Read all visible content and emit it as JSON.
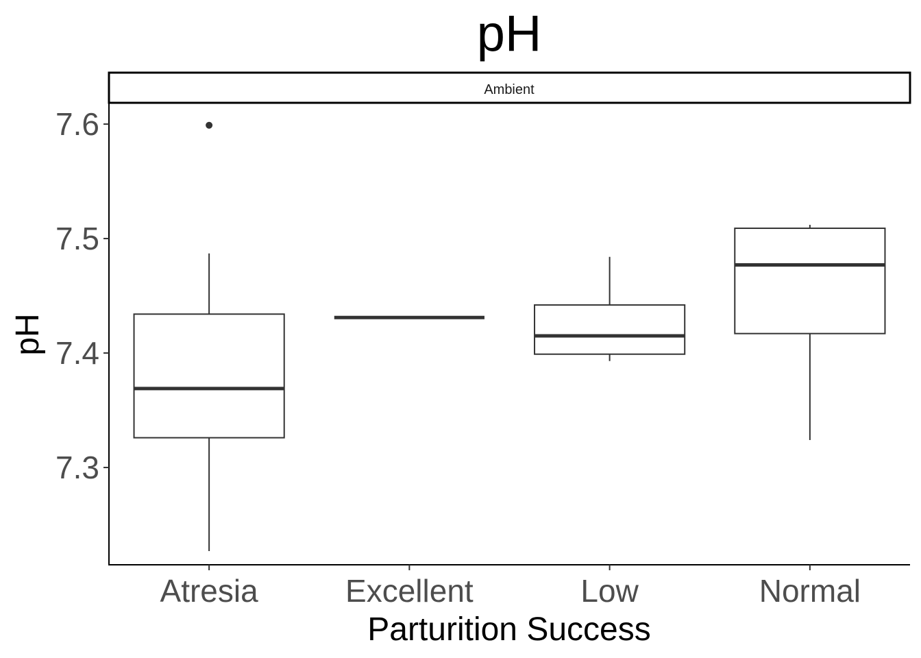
{
  "chart_data": {
    "type": "boxplot",
    "title": "pH",
    "facet_label": "Ambient",
    "xlabel": "Parturition Success",
    "ylabel": "pH",
    "ylim": [
      7.215,
      7.618
    ],
    "yticks": [
      7.3,
      7.4,
      7.5,
      7.6
    ],
    "ytick_labels": [
      "7.3",
      "7.4",
      "7.5",
      "7.6"
    ],
    "categories": [
      "Atresia",
      "Excellent",
      "Low",
      "Normal"
    ],
    "boxes": [
      {
        "category": "Atresia",
        "whisker_low": 7.227,
        "q1": 7.326,
        "median": 7.369,
        "q3": 7.434,
        "whisker_high": 7.487,
        "outliers": [
          7.599
        ]
      },
      {
        "category": "Excellent",
        "whisker_low": 7.431,
        "q1": 7.431,
        "median": 7.431,
        "q3": 7.431,
        "whisker_high": 7.431,
        "outliers": []
      },
      {
        "category": "Low",
        "whisker_low": 7.393,
        "q1": 7.399,
        "median": 7.415,
        "q3": 7.442,
        "whisker_high": 7.484,
        "outliers": []
      },
      {
        "category": "Normal",
        "whisker_low": 7.324,
        "q1": 7.417,
        "median": 7.477,
        "q3": 7.509,
        "whisker_high": 7.512,
        "outliers": []
      }
    ],
    "grid": false,
    "legend": "none",
    "colors": {
      "box_line": "#333333",
      "box_fill": "#ffffff",
      "axis_text": "#4d4d4d",
      "title_text": "#000000"
    }
  }
}
